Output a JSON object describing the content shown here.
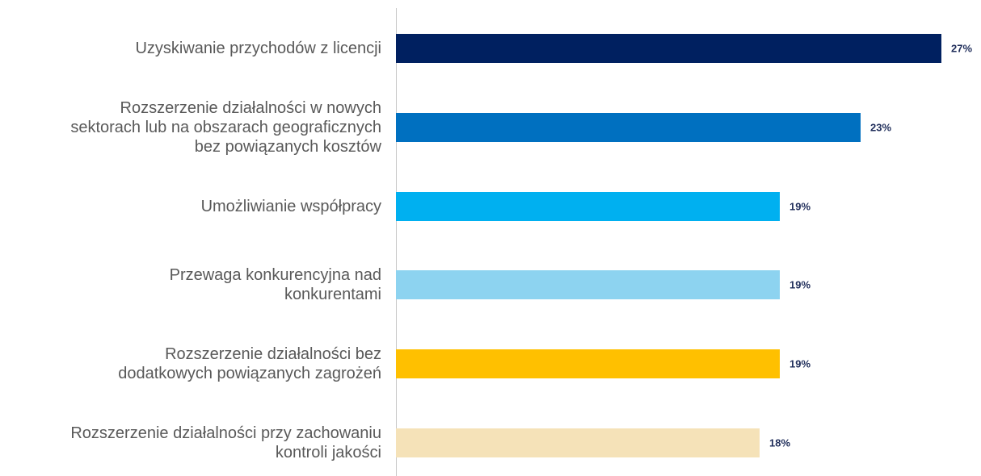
{
  "chart_data": {
    "type": "bar",
    "orientation": "horizontal",
    "categories": [
      "Uzyskiwanie przychodów z licencji",
      "Rozszerzenie działalności w nowych\nsektorach lub na obszarach geograficznych\nbez powiązanych kosztów",
      "Umożliwianie współpracy",
      "Przewaga konkurencyjna nad\nkonkurentami",
      "Rozszerzenie działalności bez\ndodatkowych powiązanych zagrożeń",
      "Rozszerzenie działalności przy zachowaniu\nkontroli jakości"
    ],
    "values": [
      27,
      23,
      19,
      19,
      19,
      18
    ],
    "value_labels": [
      "27%",
      "23%",
      "19%",
      "19%",
      "19%",
      "18%"
    ],
    "colors": [
      "#002060",
      "#0070c0",
      "#00b0f0",
      "#8dd3f0",
      "#ffc000",
      "#f5e2b8"
    ]
  }
}
